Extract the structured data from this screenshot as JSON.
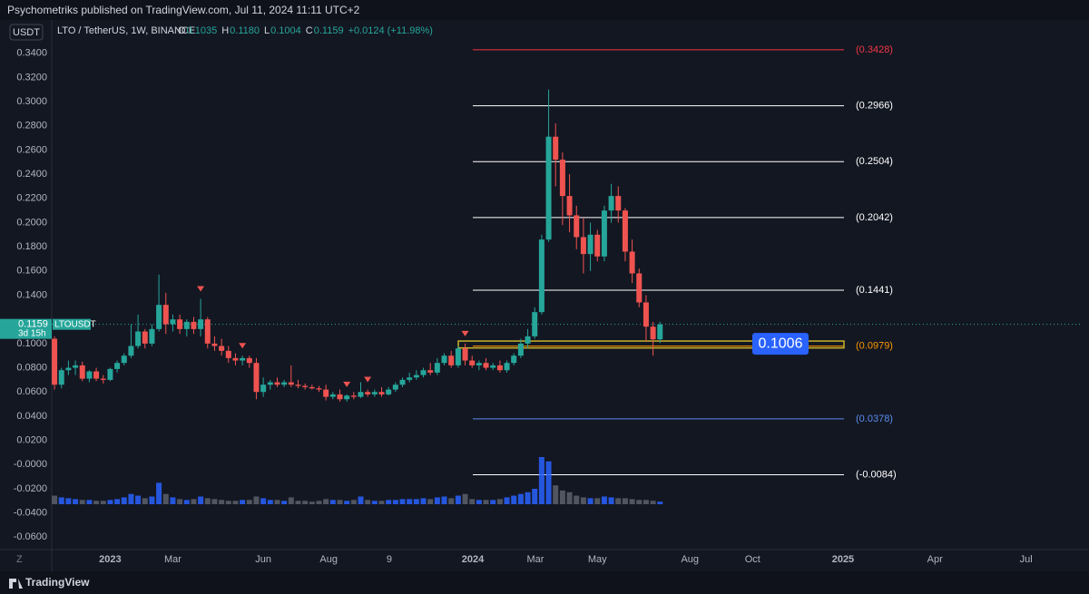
{
  "header": {
    "text": "Psychometriks published on TradingView.com, Jul 11, 2024 11:11 UTC+2"
  },
  "chart_data": {
    "type": "candlestick",
    "currency": "USDT",
    "symbol": "LTO / TetherUS, 1W, BINANCE",
    "ohlc_labels": [
      {
        "key": "O",
        "value": "0.1035"
      },
      {
        "key": "H",
        "value": "0.1180"
      },
      {
        "key": "L",
        "value": "0.1004"
      },
      {
        "key": "C",
        "value": "0.1159"
      }
    ],
    "change": "+0.0124 (+11.98%)",
    "candles": [
      [
        0.104,
        0.106,
        0.062,
        0.066
      ],
      [
        0.066,
        0.08,
        0.063,
        0.078
      ],
      [
        0.078,
        0.086,
        0.074,
        0.08
      ],
      [
        0.08,
        0.086,
        0.074,
        0.082
      ],
      [
        0.082,
        0.085,
        0.069,
        0.071
      ],
      [
        0.071,
        0.078,
        0.068,
        0.077
      ],
      [
        0.077,
        0.08,
        0.069,
        0.071
      ],
      [
        0.071,
        0.074,
        0.067,
        0.07
      ],
      [
        0.07,
        0.08,
        0.069,
        0.079
      ],
      [
        0.079,
        0.086,
        0.076,
        0.084
      ],
      [
        0.084,
        0.092,
        0.082,
        0.09
      ],
      [
        0.09,
        0.116,
        0.088,
        0.098
      ],
      [
        0.098,
        0.124,
        0.096,
        0.11
      ],
      [
        0.11,
        0.112,
        0.096,
        0.1
      ],
      [
        0.1,
        0.116,
        0.098,
        0.112
      ],
      [
        0.112,
        0.157,
        0.11,
        0.132
      ],
      [
        0.132,
        0.142,
        0.108,
        0.116
      ],
      [
        0.116,
        0.124,
        0.11,
        0.12
      ],
      [
        0.12,
        0.124,
        0.108,
        0.112
      ],
      [
        0.112,
        0.12,
        0.106,
        0.118
      ],
      [
        0.118,
        0.122,
        0.108,
        0.112
      ],
      [
        0.112,
        0.137,
        0.106,
        0.12
      ],
      [
        0.12,
        0.122,
        0.096,
        0.1
      ],
      [
        0.1,
        0.106,
        0.094,
        0.098
      ],
      [
        0.098,
        0.104,
        0.09,
        0.094
      ],
      [
        0.094,
        0.098,
        0.084,
        0.088
      ],
      [
        0.088,
        0.092,
        0.082,
        0.086
      ],
      [
        0.086,
        0.09,
        0.082,
        0.088
      ],
      [
        0.088,
        0.09,
        0.08,
        0.084
      ],
      [
        0.084,
        0.088,
        0.054,
        0.06
      ],
      [
        0.06,
        0.072,
        0.056,
        0.066
      ],
      [
        0.066,
        0.07,
        0.062,
        0.068
      ],
      [
        0.068,
        0.072,
        0.064,
        0.066
      ],
      [
        0.066,
        0.07,
        0.064,
        0.068
      ],
      [
        0.068,
        0.082,
        0.064,
        0.066
      ],
      [
        0.066,
        0.07,
        0.063,
        0.065
      ],
      [
        0.065,
        0.067,
        0.062,
        0.064
      ],
      [
        0.064,
        0.066,
        0.062,
        0.063
      ],
      [
        0.063,
        0.065,
        0.06,
        0.062
      ],
      [
        0.062,
        0.066,
        0.053,
        0.056
      ],
      [
        0.056,
        0.06,
        0.054,
        0.058
      ],
      [
        0.058,
        0.062,
        0.052,
        0.054
      ],
      [
        0.054,
        0.058,
        0.052,
        0.057
      ],
      [
        0.057,
        0.06,
        0.054,
        0.056
      ],
      [
        0.056,
        0.068,
        0.055,
        0.06
      ],
      [
        0.06,
        0.062,
        0.056,
        0.058
      ],
      [
        0.058,
        0.062,
        0.056,
        0.06
      ],
      [
        0.06,
        0.064,
        0.056,
        0.058
      ],
      [
        0.058,
        0.064,
        0.057,
        0.062
      ],
      [
        0.062,
        0.068,
        0.06,
        0.066
      ],
      [
        0.066,
        0.072,
        0.064,
        0.07
      ],
      [
        0.07,
        0.076,
        0.068,
        0.072
      ],
      [
        0.072,
        0.078,
        0.07,
        0.074
      ],
      [
        0.074,
        0.08,
        0.072,
        0.078
      ],
      [
        0.078,
        0.084,
        0.074,
        0.076
      ],
      [
        0.076,
        0.088,
        0.074,
        0.084
      ],
      [
        0.084,
        0.092,
        0.082,
        0.09
      ],
      [
        0.09,
        0.094,
        0.08,
        0.082
      ],
      [
        0.082,
        0.098,
        0.08,
        0.096
      ],
      [
        0.096,
        0.1,
        0.082,
        0.086
      ],
      [
        0.086,
        0.09,
        0.08,
        0.082
      ],
      [
        0.082,
        0.086,
        0.078,
        0.084
      ],
      [
        0.084,
        0.088,
        0.078,
        0.08
      ],
      [
        0.08,
        0.084,
        0.078,
        0.082
      ],
      [
        0.082,
        0.086,
        0.076,
        0.078
      ],
      [
        0.078,
        0.086,
        0.076,
        0.084
      ],
      [
        0.084,
        0.092,
        0.082,
        0.09
      ],
      [
        0.09,
        0.104,
        0.088,
        0.1
      ],
      [
        0.1,
        0.112,
        0.096,
        0.106
      ],
      [
        0.106,
        0.13,
        0.104,
        0.126
      ],
      [
        0.126,
        0.19,
        0.124,
        0.186
      ],
      [
        0.186,
        0.31,
        0.184,
        0.271
      ],
      [
        0.271,
        0.282,
        0.23,
        0.252
      ],
      [
        0.252,
        0.258,
        0.198,
        0.222
      ],
      [
        0.222,
        0.24,
        0.192,
        0.206
      ],
      [
        0.206,
        0.214,
        0.178,
        0.188
      ],
      [
        0.188,
        0.204,
        0.158,
        0.174
      ],
      [
        0.174,
        0.2,
        0.16,
        0.19
      ],
      [
        0.19,
        0.194,
        0.168,
        0.172
      ],
      [
        0.172,
        0.214,
        0.168,
        0.21
      ],
      [
        0.21,
        0.232,
        0.2,
        0.222
      ],
      [
        0.222,
        0.23,
        0.2,
        0.21
      ],
      [
        0.21,
        0.212,
        0.168,
        0.176
      ],
      [
        0.176,
        0.186,
        0.15,
        0.158
      ],
      [
        0.158,
        0.162,
        0.13,
        0.134
      ],
      [
        0.134,
        0.14,
        0.102,
        0.114
      ],
      [
        0.114,
        0.118,
        0.09,
        0.1035
      ],
      [
        0.1035,
        0.118,
        0.1004,
        0.1159
      ]
    ],
    "volume": [
      10,
      8,
      7,
      6,
      5,
      5,
      4,
      4,
      5,
      6,
      8,
      12,
      10,
      7,
      9,
      25,
      12,
      8,
      6,
      5,
      6,
      9,
      7,
      6,
      5,
      4,
      4,
      5,
      5,
      9,
      7,
      5,
      5,
      4,
      8,
      4,
      4,
      3,
      4,
      6,
      5,
      5,
      4,
      5,
      9,
      5,
      4,
      4,
      5,
      5,
      6,
      6,
      6,
      7,
      6,
      8,
      9,
      7,
      10,
      12,
      6,
      5,
      5,
      5,
      6,
      8,
      10,
      12,
      14,
      18,
      55,
      50,
      22,
      16,
      14,
      10,
      8,
      7,
      7,
      9,
      8,
      7,
      7,
      6,
      5,
      5,
      4,
      3
    ],
    "up_color": "#26a69a",
    "down_color": "#ef5350",
    "volume_up_color": "#2962ff",
    "volume_down_color": "#5d606b",
    "xlim": [
      -0.4,
      147.6
    ],
    "xticks": [
      {
        "value": 8,
        "label": "2023"
      },
      {
        "value": 17,
        "label": "Mar"
      },
      {
        "value": 30,
        "label": "Jun"
      },
      {
        "value": 39.4,
        "label": "Aug"
      },
      {
        "value": 48.1,
        "label": "9"
      },
      {
        "value": 60.1,
        "label": "2024"
      },
      {
        "value": 69.1,
        "label": "Mar"
      },
      {
        "value": 78,
        "label": "May"
      },
      {
        "value": 91.3,
        "label": "Aug"
      },
      {
        "value": 100.3,
        "label": "Oct"
      },
      {
        "value": 113.3,
        "label": "2025"
      },
      {
        "value": 126.5,
        "label": "Apr"
      },
      {
        "value": 139.6,
        "label": "Jul"
      }
    ],
    "ylim": [
      -0.0695,
      0.348
    ],
    "yticks": [
      {
        "value": 0.34,
        "label": "0.3400"
      },
      {
        "value": 0.32,
        "label": "0.3200"
      },
      {
        "value": 0.3,
        "label": "0.3000"
      },
      {
        "value": 0.28,
        "label": "0.2800"
      },
      {
        "value": 0.26,
        "label": "0.2600"
      },
      {
        "value": 0.24,
        "label": "0.2400"
      },
      {
        "value": 0.22,
        "label": "0.2200"
      },
      {
        "value": 0.2,
        "label": "0.2000"
      },
      {
        "value": 0.18,
        "label": "0.1800"
      },
      {
        "value": 0.16,
        "label": "0.1600"
      },
      {
        "value": 0.14,
        "label": "0.1400"
      },
      {
        "value": 0.1,
        "label": "0.1000"
      },
      {
        "value": 0.08,
        "label": "0.0800"
      },
      {
        "value": 0.06,
        "label": "0.0600"
      },
      {
        "value": 0.04,
        "label": "0.0400"
      },
      {
        "value": 0.02,
        "label": "0.0200"
      },
      {
        "value": 0,
        "label": "-0.0000"
      },
      {
        "value": -0.02,
        "label": "-0.0200"
      },
      {
        "value": -0.04,
        "label": "-0.0400"
      },
      {
        "value": -0.06,
        "label": "-0.0600"
      }
    ],
    "fib_levels": [
      {
        "value": 0.3428,
        "label": "(0.3428)",
        "color": "#f23645"
      },
      {
        "value": 0.2966,
        "label": "(0.2966)",
        "color": "#ffffff"
      },
      {
        "value": 0.2504,
        "label": "(0.2504)",
        "color": "#ffffff"
      },
      {
        "value": 0.2042,
        "label": "(0.2042)",
        "color": "#ffffff"
      },
      {
        "value": 0.1441,
        "label": "(0.1441)",
        "color": "#ffffff"
      },
      {
        "value": 0.0979,
        "label": "(0.0979)",
        "color": "#ff9800"
      },
      {
        "value": 0.0378,
        "label": "(0.0378)",
        "color": "#5b8def"
      },
      {
        "value": -0.0084,
        "label": "(-0.0084)",
        "color": "#ffffff"
      }
    ],
    "zone": {
      "low": 0.0979,
      "high": 0.1006,
      "label": "0.1006",
      "color": "#c9b22a",
      "label_color": "#2962ff"
    },
    "signals": [
      21,
      27,
      42,
      45,
      59
    ],
    "signal_color": "#ef5350",
    "last_price": {
      "value": 0.1159,
      "label": "0.1159",
      "symbol": "LTOUSDT",
      "countdown": "3d 15h"
    }
  },
  "footer": {
    "brand": "TradingView",
    "z": "Z"
  }
}
